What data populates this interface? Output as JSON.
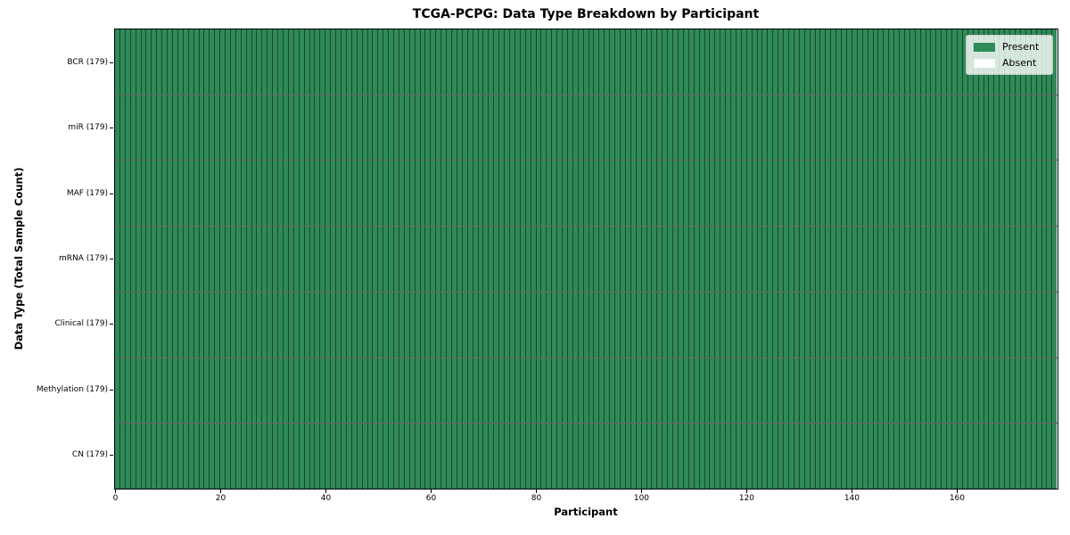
{
  "chart_data": {
    "type": "heatmap",
    "title": "TCGA-PCPG: Data Type Breakdown by Participant",
    "xlabel": "Participant",
    "ylabel": "Data Type (Total Sample Count)",
    "x_ticks": [
      0,
      20,
      40,
      60,
      80,
      100,
      120,
      140,
      160
    ],
    "x_range": [
      0,
      179
    ],
    "n_participants": 179,
    "rows": [
      {
        "label": "BCR (179)",
        "data_type": "BCR",
        "total_samples": 179,
        "present_count": 179,
        "absent_indices": []
      },
      {
        "label": "miR (179)",
        "data_type": "miR",
        "total_samples": 179,
        "present_count": 179,
        "absent_indices": []
      },
      {
        "label": "MAF (179)",
        "data_type": "MAF",
        "total_samples": 179,
        "present_count": 179,
        "absent_indices": []
      },
      {
        "label": "mRNA (179)",
        "data_type": "mRNA",
        "total_samples": 179,
        "present_count": 179,
        "absent_indices": []
      },
      {
        "label": "Clinical (179)",
        "data_type": "Clinical",
        "total_samples": 179,
        "present_count": 179,
        "absent_indices": []
      },
      {
        "label": "Methylation (179)",
        "data_type": "Methylation",
        "total_samples": 179,
        "present_count": 179,
        "absent_indices": []
      },
      {
        "label": "CN (179)",
        "data_type": "CN",
        "total_samples": 179,
        "present_count": 179,
        "absent_indices": []
      }
    ],
    "legend": {
      "position": "upper-right",
      "items": [
        {
          "label": "Present",
          "color": "#2e8b57"
        },
        {
          "label": "Absent",
          "color": "#ffffff"
        }
      ]
    },
    "colors": {
      "present": "#2e8b57",
      "absent": "#ffffff",
      "cell_edge": "rgba(0,0,0,0.48)",
      "row_divider": "rgba(0,0,0,0.60)",
      "spine": "#000000"
    },
    "grid": "cell-borders"
  }
}
